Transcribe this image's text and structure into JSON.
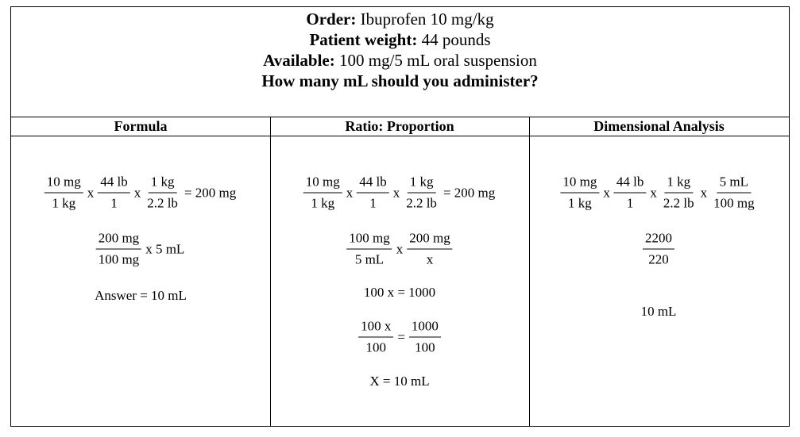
{
  "problem": {
    "order_label": "Order:",
    "order_value": "Ibuprofen 10 mg/kg",
    "weight_label": "Patient weight:",
    "weight_value": "44 pounds",
    "available_label": "Available:",
    "available_value": "100 mg/5 mL oral suspension",
    "question": "How many mL should you administer?"
  },
  "columns": [
    {
      "header": "Formula",
      "lines": [
        [
          {
            "frac": [
              "10 mg",
              "1 kg"
            ]
          },
          {
            "t": "x"
          },
          {
            "frac": [
              "44 lb",
              "1"
            ]
          },
          {
            "t": "x"
          },
          {
            "frac": [
              "1 kg",
              "2.2 lb"
            ]
          },
          {
            "t": "= 200 mg"
          }
        ],
        [
          {
            "frac": [
              "200 mg",
              "100 mg"
            ]
          },
          {
            "t": "x 5 mL"
          }
        ],
        [
          {
            "t": "Answer = 10 mL"
          }
        ]
      ]
    },
    {
      "header": "Ratio: Proportion",
      "lines": [
        [
          {
            "frac": [
              "10 mg",
              "1 kg"
            ]
          },
          {
            "t": "x"
          },
          {
            "frac": [
              "44 lb",
              "1"
            ]
          },
          {
            "t": "x"
          },
          {
            "frac": [
              "1 kg",
              "2.2 lb"
            ]
          },
          {
            "t": "= 200 mg"
          }
        ],
        [
          {
            "frac": [
              "100 mg",
              "5 mL"
            ]
          },
          {
            "t": "x"
          },
          {
            "frac": [
              "200 mg",
              "x"
            ]
          }
        ],
        [
          {
            "t": "100 x = 1000"
          }
        ],
        [
          {
            "frac": [
              "100 x",
              "100"
            ]
          },
          {
            "t": "="
          },
          {
            "frac": [
              "1000",
              "100"
            ]
          }
        ],
        [
          {
            "t": "X = 10 mL"
          }
        ]
      ]
    },
    {
      "header": "Dimensional Analysis",
      "lines": [
        [
          {
            "frac": [
              "10 mg",
              "1 kg"
            ]
          },
          {
            "t": "x"
          },
          {
            "frac": [
              "44 lb",
              "1"
            ]
          },
          {
            "t": "x"
          },
          {
            "frac": [
              "1 kg",
              "2.2 lb"
            ]
          },
          {
            "t": "x"
          },
          {
            "frac": [
              "5 mL",
              "100 mg"
            ]
          }
        ],
        [
          {
            "frac": [
              "2200",
              "220"
            ]
          }
        ],
        [
          {
            "t": "10 mL"
          }
        ]
      ]
    }
  ]
}
